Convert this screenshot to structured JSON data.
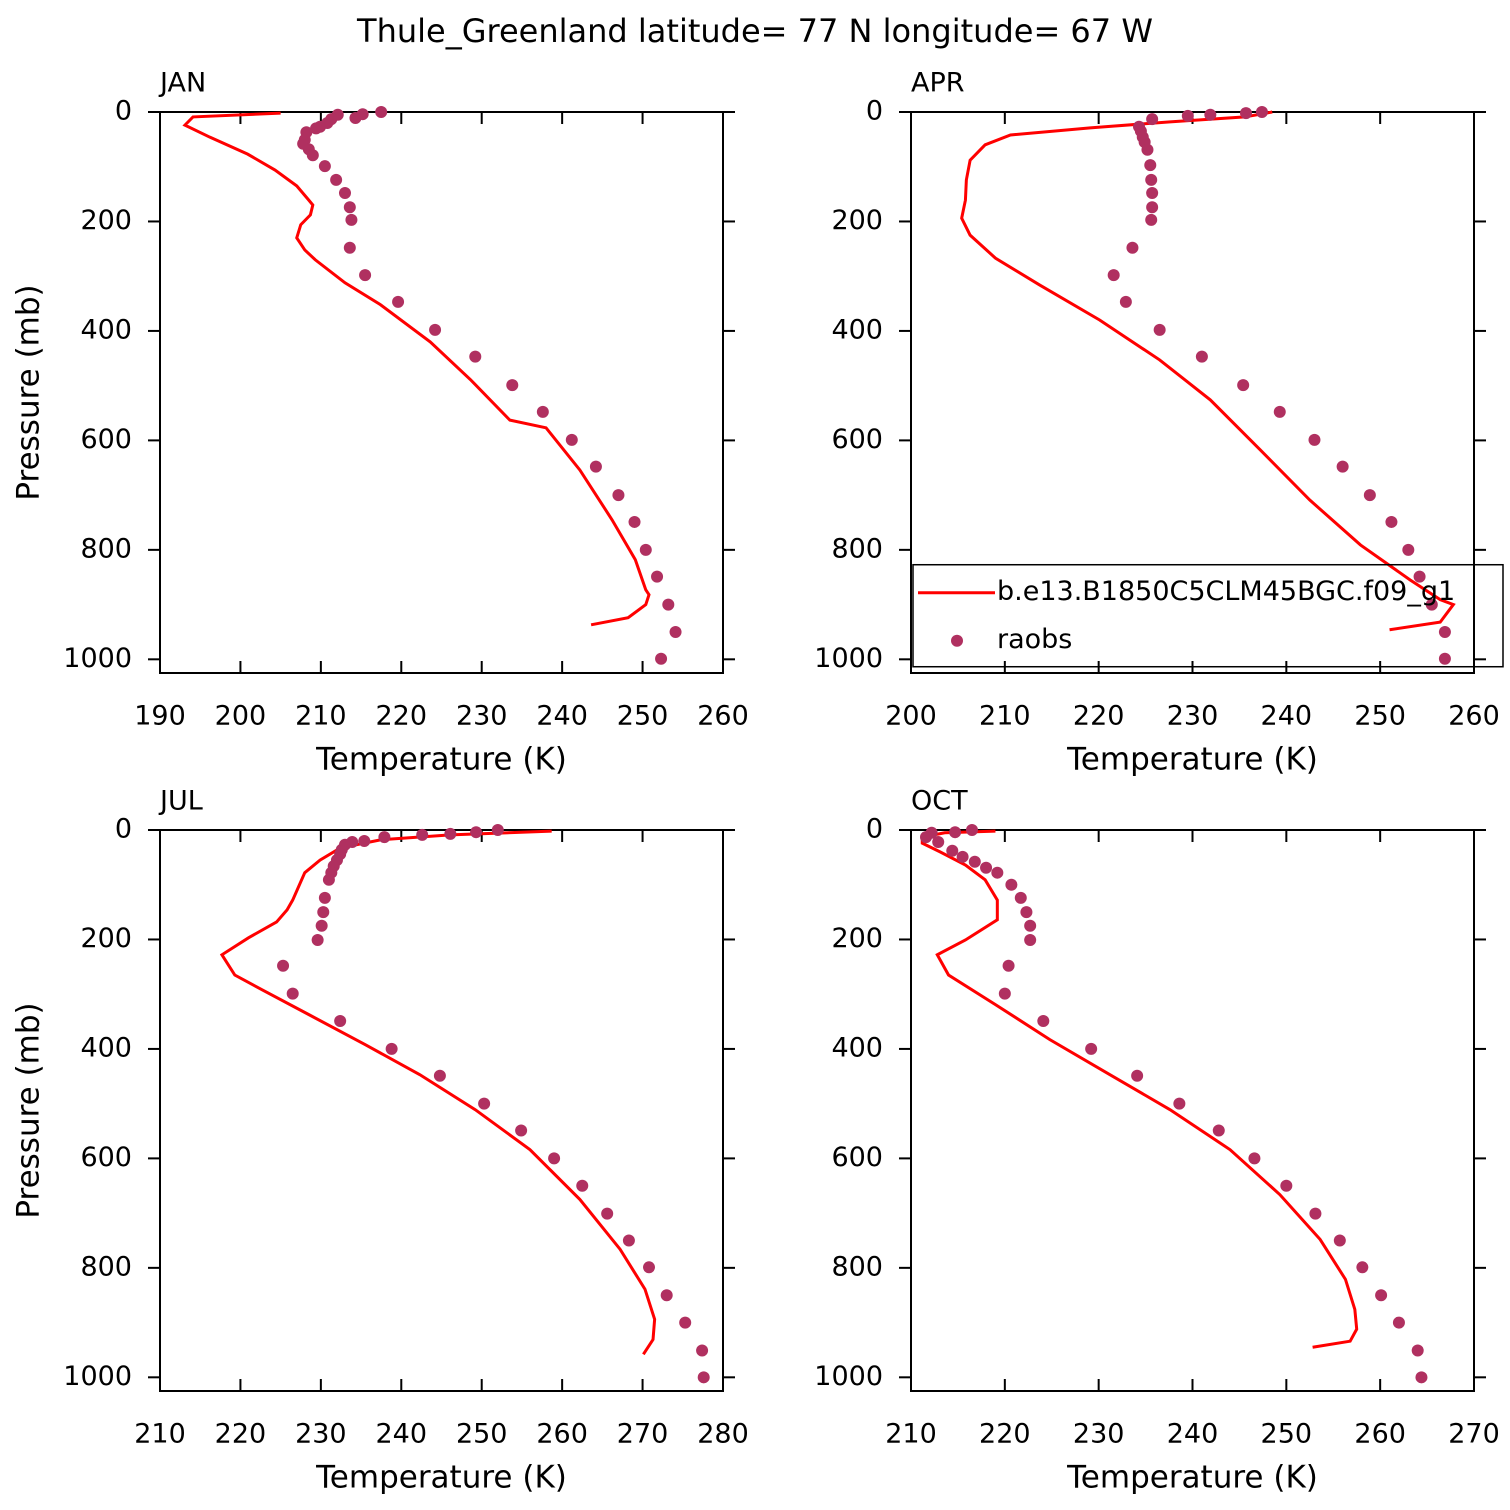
{
  "title": "Thule_Greenland  latitude= 77 N longitude= 67 W",
  "chart_data": [
    {
      "type": "line",
      "panel_label": "JAN",
      "xlabel": "Temperature (K)",
      "ylabel": "Pressure (mb)",
      "xlim": [
        190,
        260
      ],
      "xticks": [
        190,
        200,
        210,
        220,
        230,
        240,
        250,
        260
      ],
      "ylim": [
        1025,
        0
      ],
      "yticks": [
        0,
        200,
        400,
        600,
        800,
        1000
      ],
      "series": [
        {
          "type": "line",
          "color": "#ff0000",
          "x": [
            205.0,
            194.1,
            193.1,
            196.2,
            200.9,
            204.3,
            207.0,
            208.5,
            209.0,
            208.7,
            207.5,
            207.0,
            208.0,
            209.3,
            213.0,
            217.4,
            223.6,
            228.6,
            233.5,
            238.0,
            242.2,
            246.2,
            249.1,
            250.4,
            250.8,
            250.4,
            248.2,
            243.6
          ],
          "y": [
            2,
            9,
            24,
            46,
            77,
            106,
            135,
            161,
            170,
            188,
            206,
            230,
            252,
            270,
            312,
            352,
            420,
            489,
            563,
            577,
            654,
            745,
            818,
            873,
            882,
            900,
            924,
            937
          ]
        },
        {
          "type": "scatter",
          "color": "#b03060",
          "x": [
            217.5,
            215.2,
            214.3,
            212.1,
            211.3,
            210.8,
            209.9,
            209.4,
            208.2,
            208.0,
            207.8,
            208.5,
            209.0,
            210.5,
            211.9,
            213.0,
            213.6,
            213.8,
            213.6,
            215.5,
            219.6,
            224.2,
            229.2,
            233.8,
            237.6,
            241.2,
            244.2,
            247.0,
            249.0,
            250.4,
            251.8,
            253.2,
            254.1,
            252.3
          ],
          "y": [
            0,
            4,
            11,
            5,
            13,
            20,
            27,
            30,
            37,
            51,
            58,
            68,
            79,
            99,
            124,
            148,
            174,
            197,
            248,
            298,
            347,
            398,
            447,
            499,
            548,
            599,
            648,
            700,
            749,
            800,
            849,
            900,
            950,
            999
          ]
        }
      ]
    },
    {
      "type": "line",
      "panel_label": "APR",
      "xlabel": "Temperature (K)",
      "xlim": [
        200,
        260
      ],
      "xticks": [
        200,
        210,
        220,
        230,
        240,
        250,
        260
      ],
      "ylim": [
        1025,
        0
      ],
      "yticks": [
        0,
        200,
        400,
        600,
        800,
        1000
      ],
      "legend": "lower-left",
      "series": [
        {
          "type": "line",
          "name": "b.e13.B1850C5CLM45BGC.f09_g1",
          "color": "#ff0000",
          "x": [
            238.5,
            235.6,
            227.6,
            219.1,
            210.6,
            207.9,
            206.3,
            205.9,
            205.8,
            205.4,
            206.3,
            209.0,
            213.7,
            220.1,
            226.5,
            231.9,
            237.2,
            242.5,
            247.9,
            253.2,
            256.4,
            257.8,
            256.4,
            251.0
          ],
          "y": [
            0,
            9,
            18,
            29,
            42,
            60,
            88,
            124,
            161,
            194,
            225,
            267,
            316,
            380,
            453,
            526,
            617,
            709,
            791,
            855,
            891,
            900,
            932,
            946
          ]
        },
        {
          "type": "scatter",
          "name": "raobs",
          "color": "#b03060",
          "x": [
            237.4,
            235.7,
            231.9,
            229.5,
            225.7,
            224.3,
            224.5,
            224.7,
            224.9,
            225.2,
            225.5,
            225.6,
            225.7,
            225.7,
            225.6,
            223.6,
            221.6,
            222.9,
            226.5,
            231.0,
            235.4,
            239.3,
            243.0,
            246.0,
            248.9,
            251.2,
            253.0,
            254.2,
            255.5,
            256.9,
            256.9
          ],
          "y": [
            0,
            2,
            5,
            7,
            13,
            27,
            35,
            46,
            55,
            69,
            97,
            124,
            148,
            174,
            197,
            248,
            298,
            347,
            398,
            447,
            499,
            548,
            599,
            648,
            700,
            749,
            800,
            849,
            900,
            950,
            999
          ]
        }
      ]
    },
    {
      "type": "line",
      "panel_label": "JUL",
      "xlabel": "Temperature (K)",
      "ylabel": "Pressure (mb)",
      "xlim": [
        210,
        280
      ],
      "xticks": [
        210,
        220,
        230,
        240,
        250,
        260,
        270,
        280
      ],
      "ylim": [
        1025,
        0
      ],
      "yticks": [
        0,
        200,
        400,
        600,
        800,
        1000
      ],
      "series": [
        {
          "type": "line",
          "color": "#ff0000",
          "x": [
            258.7,
            246.1,
            237.4,
            232.4,
            229.9,
            228.0,
            226.5,
            225.8,
            224.5,
            221.0,
            217.7,
            219.3,
            222.7,
            228.6,
            235.5,
            242.3,
            249.2,
            256.0,
            262.2,
            267.2,
            270.3,
            271.5,
            271.3,
            270.1
          ],
          "y": [
            2,
            9,
            18,
            33,
            55,
            78,
            128,
            146,
            168,
            197,
            228,
            265,
            292,
            338,
            392,
            447,
            511,
            584,
            675,
            766,
            839,
            894,
            931,
            958
          ]
        },
        {
          "type": "scatter",
          "color": "#b03060",
          "x": [
            252.0,
            249.3,
            246.1,
            242.6,
            237.9,
            235.4,
            233.9,
            233.0,
            232.6,
            232.4,
            232.0,
            231.6,
            231.3,
            231.0,
            230.5,
            230.3,
            230.1,
            229.6,
            225.3,
            226.5,
            232.4,
            238.8,
            244.8,
            250.3,
            254.9,
            259.0,
            262.5,
            265.6,
            268.3,
            270.8,
            273.0,
            275.3,
            277.4,
            277.6
          ],
          "y": [
            0,
            4,
            7,
            9,
            13,
            20,
            22,
            27,
            36,
            44,
            55,
            66,
            78,
            91,
            124,
            150,
            175,
            201,
            248,
            299,
            349,
            400,
            449,
            500,
            549,
            600,
            650,
            701,
            750,
            799,
            850,
            900,
            951,
            1000
          ]
        }
      ]
    },
    {
      "type": "line",
      "panel_label": "OCT",
      "xlabel": "Temperature (K)",
      "xlim": [
        210,
        270
      ],
      "xticks": [
        210,
        220,
        230,
        240,
        250,
        260,
        270
      ],
      "ylim": [
        1025,
        0
      ],
      "yticks": [
        0,
        200,
        400,
        600,
        800,
        1000
      ],
      "series": [
        {
          "type": "line",
          "color": "#ff0000",
          "x": [
            219.0,
            213.6,
            211.2,
            211.2,
            213.1,
            215.8,
            217.9,
            219.2,
            219.2,
            215.8,
            212.8,
            214.0,
            219.0,
            224.8,
            231.2,
            237.6,
            244.0,
            249.3,
            253.6,
            256.3,
            257.3,
            257.5,
            256.8,
            252.8
          ],
          "y": [
            2,
            5,
            13,
            24,
            40,
            64,
            91,
            128,
            164,
            201,
            228,
            265,
            319,
            383,
            447,
            511,
            584,
            666,
            748,
            821,
            876,
            912,
            934,
            945
          ]
        },
        {
          "type": "scatter",
          "color": "#b03060",
          "x": [
            216.5,
            214.7,
            212.2,
            211.6,
            212.9,
            214.4,
            215.5,
            216.8,
            218.0,
            219.2,
            220.7,
            221.7,
            222.3,
            222.7,
            222.7,
            220.4,
            220.0,
            224.1,
            229.2,
            234.1,
            238.6,
            242.8,
            246.6,
            250.0,
            253.1,
            255.7,
            258.1,
            260.1,
            262.0,
            264.0,
            264.4
          ],
          "y": [
            0,
            4,
            5,
            13,
            22,
            38,
            49,
            58,
            69,
            78,
            100,
            124,
            150,
            175,
            201,
            248,
            299,
            349,
            400,
            449,
            500,
            549,
            600,
            650,
            701,
            750,
            799,
            850,
            900,
            951,
            1000
          ]
        }
      ]
    }
  ]
}
